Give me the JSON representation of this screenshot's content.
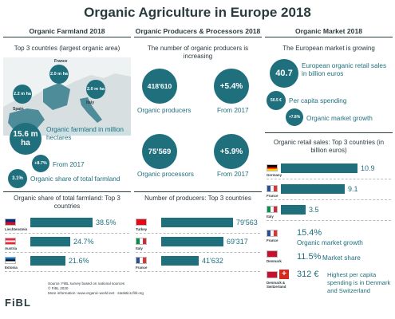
{
  "title": "Organic Agriculture in Europe 2018",
  "farmland": {
    "heading": "Organic Farmland 2018",
    "top3_title": "Top 3 countries (largest organic area)",
    "map": [
      {
        "country": "France",
        "area": "2.0 m ha"
      },
      {
        "country": "Spain",
        "area": "2.2 m ha"
      },
      {
        "country": "Italy",
        "area": "2.0 m ha"
      }
    ],
    "farmland_value": "15.6 m ha",
    "farmland_label": "Organic farmland in million hectares",
    "growth_value": "+8.7%",
    "growth_label": "From 2017",
    "share_value": "3.1%",
    "share_label": "Organic share of total farmland",
    "share_title": "Organic share of total farmland: Top 3 countries",
    "share_bars": [
      {
        "country": "Liechtenstein",
        "value": "38.5%",
        "num": 38.5
      },
      {
        "country": "Austria",
        "value": "24.7%",
        "num": 24.7
      },
      {
        "country": "Estonia",
        "value": "21.6%",
        "num": 21.6
      }
    ]
  },
  "producers": {
    "heading": "Organic Producers & Processors 2018",
    "subtitle": "The number of organic producers is increasing",
    "producers_value": "418'610",
    "producers_label": "Organic producers",
    "producers_growth": "+5.4%",
    "producers_growth_label": "From 2017",
    "processors_value": "75'569",
    "processors_label": "Organic processors",
    "processors_growth": "+5.9%",
    "processors_growth_label": "From 2017",
    "bars_title": "Number of producers: Top 3 countries",
    "bars": [
      {
        "country": "Turkey",
        "value": "79'563",
        "num": 79563
      },
      {
        "country": "Italy",
        "value": "69'317",
        "num": 69317
      },
      {
        "country": "France",
        "value": "41'632",
        "num": 41632
      }
    ]
  },
  "market": {
    "heading": "Organic Market 2018",
    "subtitle": "The European market is growing",
    "retail_value": "40.7",
    "retail_label": "European organic retail sales in billion euros",
    "per_capita_value": "50.5 €",
    "per_capita_label": "Per capita spending",
    "growth_value": "+7.8%",
    "growth_label": "Organic market growth",
    "sales_title": "Organic retail sales: Top 3 countries (in billion euros)",
    "sales_bars": [
      {
        "country": "Germany",
        "value": "10.9",
        "num": 10.9
      },
      {
        "country": "France",
        "value": "9.1",
        "num": 9.1
      },
      {
        "country": "Italy",
        "value": "3.5",
        "num": 3.5
      }
    ],
    "highlights": [
      {
        "country": "France",
        "value": "15.4%",
        "label": "Organic market growth"
      },
      {
        "country": "Denmark",
        "value": "11.5%",
        "label": "Market share"
      },
      {
        "country": "Denmark & Switzerland",
        "value": "312 €",
        "label": "Highest per capita spending is in Denmark and Switzerland"
      }
    ]
  },
  "footer": {
    "lines": [
      "Source: FiBL survey based on national sources",
      "© FiBL 2020",
      "More information: www.organic-world.net · statistics.fibl.org"
    ],
    "logo": "FiBL"
  },
  "colors": {
    "accent": "#1f6f7d",
    "text": "#2b3a3f"
  }
}
